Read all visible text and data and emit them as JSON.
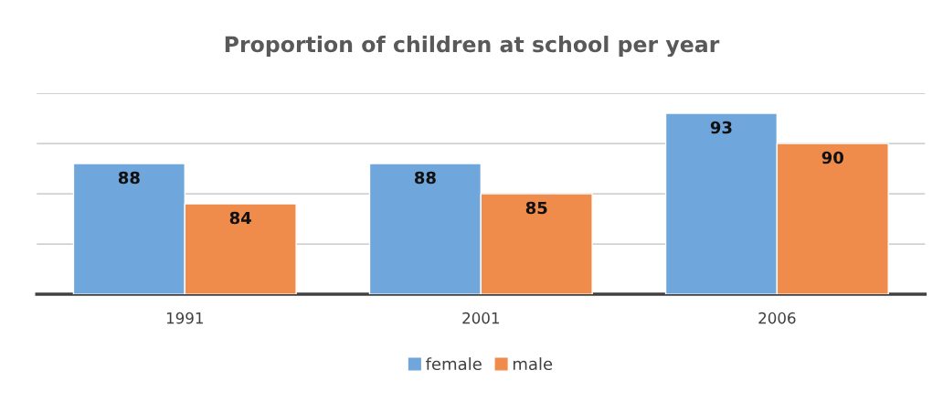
{
  "chart_data": {
    "type": "bar",
    "title": "Proportion of children at school per year",
    "categories": [
      "1991",
      "2001",
      "2006"
    ],
    "series": [
      {
        "name": "female",
        "color": "#6fa6db",
        "values": [
          88,
          88,
          93
        ]
      },
      {
        "name": "male",
        "color": "#ef8c4b",
        "values": [
          84,
          85,
          90
        ]
      }
    ],
    "ylim": [
      75,
      95
    ],
    "yticks": [
      {
        "value": 75,
        "label": null
      },
      {
        "value": 80,
        "label": null
      },
      {
        "value": 85,
        "label": null
      },
      {
        "value": 90,
        "label": null
      },
      {
        "value": 95,
        "label": null
      }
    ],
    "grid": "y",
    "legend": "bottom",
    "data_labels": true,
    "tick_labels": "x"
  }
}
